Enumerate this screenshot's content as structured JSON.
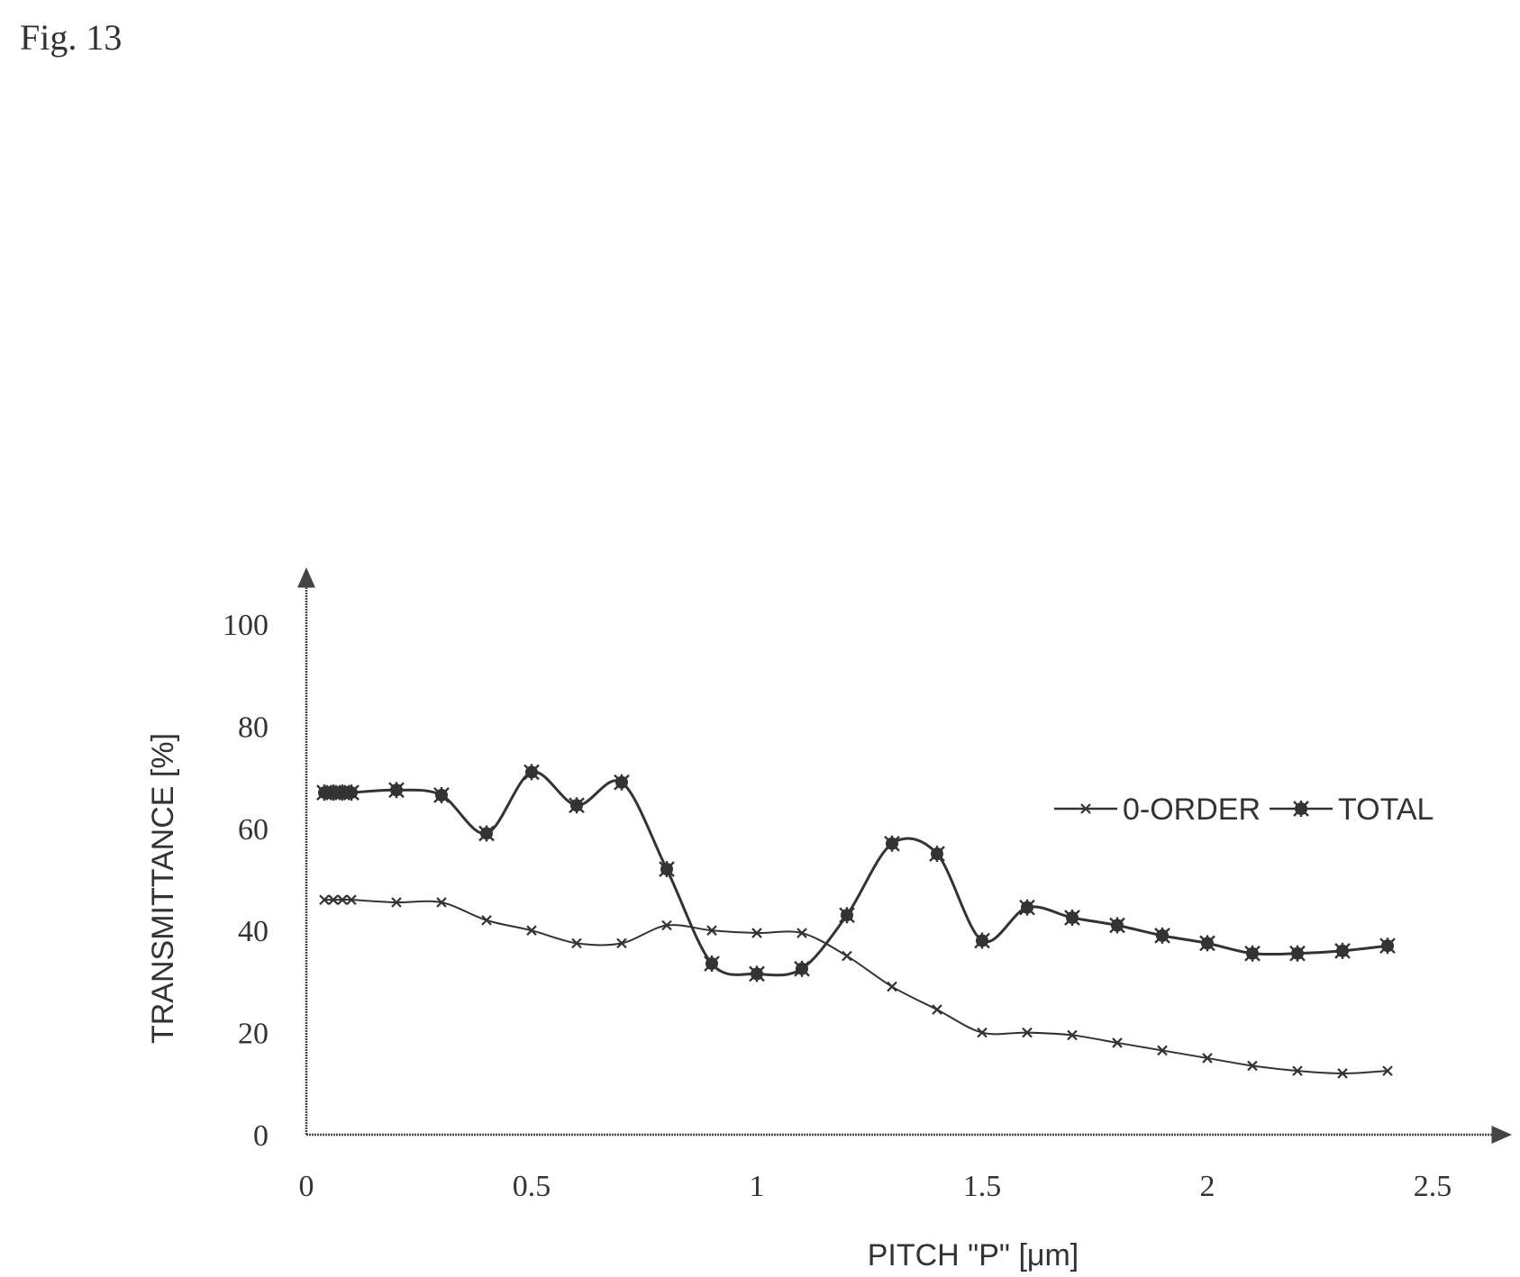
{
  "figure_label": "Fig. 13",
  "chart_data": {
    "type": "line",
    "title": "",
    "xlabel": "PITCH \"P\" [μm]",
    "ylabel": "TRANSMITTANCE [%]",
    "xlim": [
      0,
      2.6
    ],
    "ylim": [
      0,
      100
    ],
    "x_ticks": [
      0,
      0.5,
      1,
      1.5,
      2,
      2.5
    ],
    "x_tick_labels": [
      "0",
      "0.5",
      "1",
      "1.5",
      "2",
      "2.5"
    ],
    "y_ticks": [
      0,
      20,
      40,
      60,
      80,
      100
    ],
    "y_tick_labels": [
      "0",
      "20",
      "40",
      "60",
      "80",
      "100"
    ],
    "grid": false,
    "legend_position": "right",
    "series": [
      {
        "name": "0-ORDER",
        "marker": "x",
        "color": "#333333",
        "x": [
          0.04,
          0.06,
          0.08,
          0.1,
          0.2,
          0.3,
          0.4,
          0.5,
          0.6,
          0.7,
          0.8,
          0.9,
          1.0,
          1.1,
          1.2,
          1.3,
          1.4,
          1.5,
          1.6,
          1.7,
          1.8,
          1.9,
          2.0,
          2.1,
          2.2,
          2.3,
          2.4
        ],
        "values": [
          46,
          46,
          46,
          46,
          45.5,
          45.5,
          42,
          40,
          37.5,
          37.5,
          41,
          40,
          39.5,
          39.5,
          35,
          29,
          24.5,
          20,
          20,
          19.5,
          18,
          16.5,
          15,
          13.5,
          12.5,
          12,
          12.5
        ]
      },
      {
        "name": "TOTAL",
        "marker": "asterisk",
        "color": "#333333",
        "x": [
          0.04,
          0.06,
          0.08,
          0.1,
          0.2,
          0.3,
          0.4,
          0.5,
          0.6,
          0.7,
          0.8,
          0.9,
          1.0,
          1.1,
          1.2,
          1.3,
          1.4,
          1.5,
          1.6,
          1.7,
          1.8,
          1.9,
          2.0,
          2.1,
          2.2,
          2.3,
          2.4
        ],
        "values": [
          67,
          67,
          67,
          67,
          67.5,
          66.5,
          59,
          71,
          64.5,
          69,
          52,
          33.5,
          31.5,
          32.5,
          43,
          57,
          55,
          38,
          44.5,
          42.5,
          41,
          39,
          37.5,
          35.5,
          35.5,
          36,
          37
        ]
      }
    ]
  }
}
